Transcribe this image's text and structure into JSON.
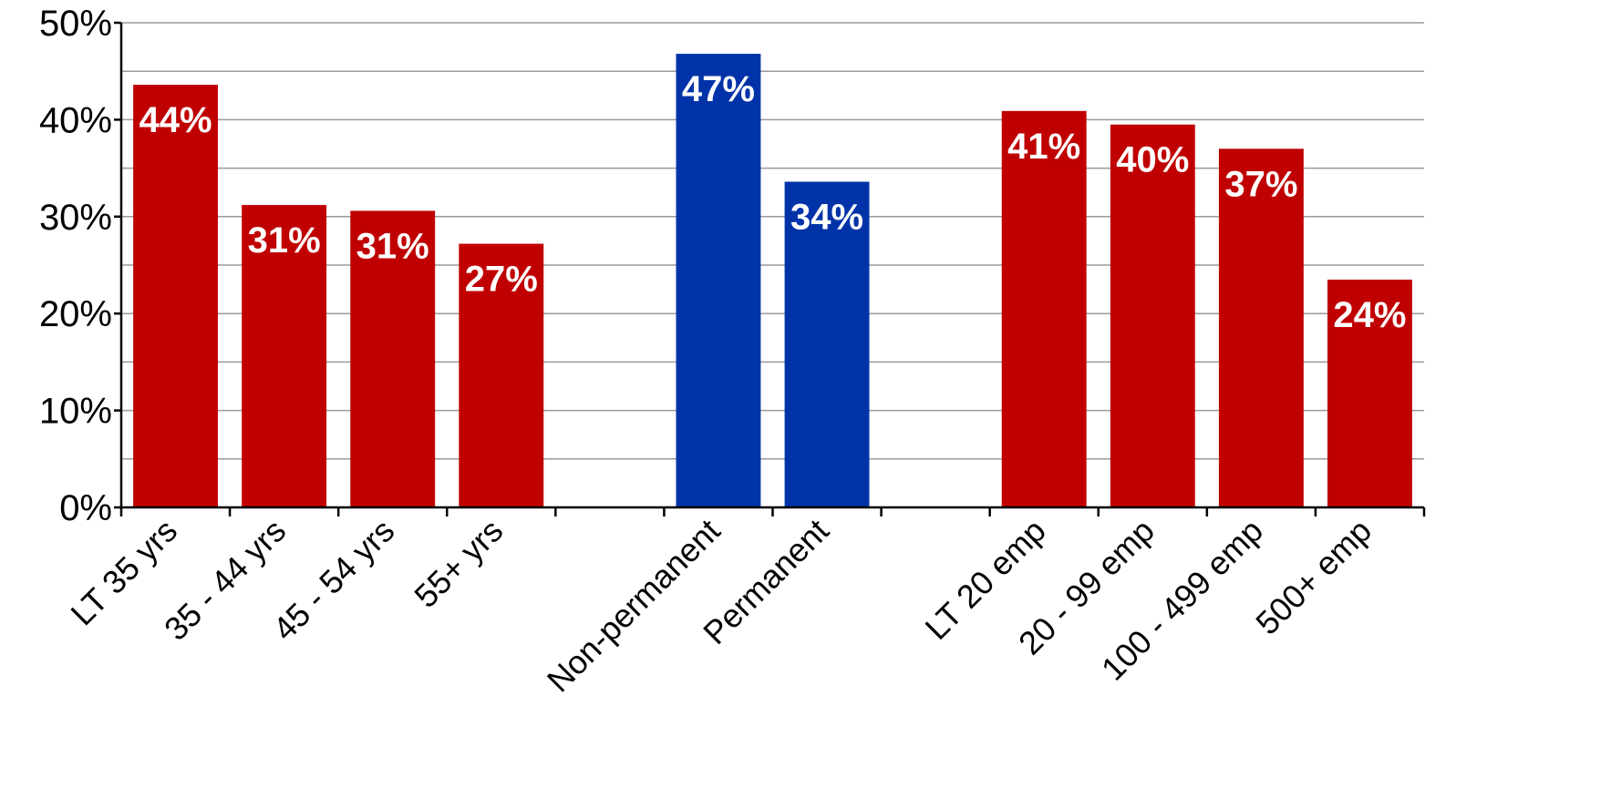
{
  "chart_data": {
    "type": "bar",
    "categories": [
      "LT 35 yrs",
      "35 - 44 yrs",
      "45 - 54 yrs",
      "55+ yrs",
      "",
      "Non-permanent",
      "Permanent",
      "",
      "LT 20 emp",
      "20 - 99 emp",
      "100 - 499 emp",
      "500+ emp"
    ],
    "values": [
      43.6,
      31.2,
      30.6,
      27.2,
      null,
      46.8,
      33.6,
      null,
      40.9,
      39.5,
      37.0,
      23.5
    ],
    "data_labels": [
      "44%",
      "31%",
      "31%",
      "27%",
      "",
      "47%",
      "34%",
      "",
      "41%",
      "40%",
      "37%",
      "24%"
    ],
    "bar_colors": [
      "#c00000",
      "#c00000",
      "#c00000",
      "#c00000",
      "",
      "#0033a8",
      "#0033a8",
      "",
      "#c00000",
      "#c00000",
      "#c00000",
      "#c00000"
    ],
    "y_ticks": [
      "0%",
      "10%",
      "20%",
      "30%",
      "40%",
      "50%"
    ],
    "ylim": [
      0,
      50
    ],
    "grid": true,
    "legend": "none"
  }
}
